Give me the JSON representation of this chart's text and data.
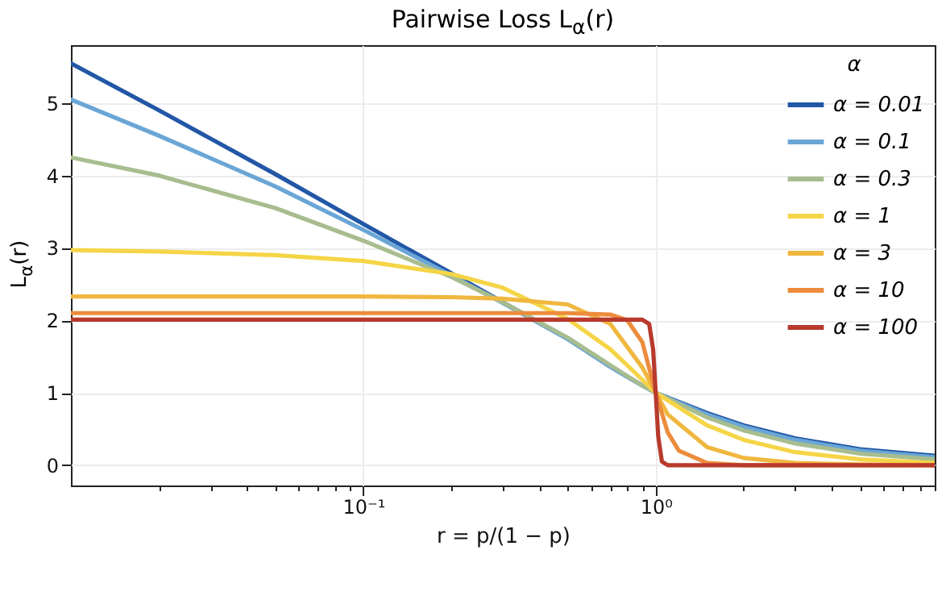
{
  "chart_data": {
    "type": "line",
    "title": "Pairwise Loss L$_{α}$(r)",
    "xlabel": "r = p/(1 − p)",
    "ylabel": "L$_{α}$(r)",
    "legend_title": "α",
    "log": "x",
    "grid": true,
    "legend": "top right",
    "line_style": "solid",
    "marker": "none",
    "xlim": [
      0.01,
      9
    ],
    "ylim": [
      -0.28,
      5.8
    ],
    "yticks": [
      0,
      1,
      2,
      3,
      4,
      5
    ],
    "xticks": [
      {
        "value": 0.02,
        "label": null
      },
      {
        "value": 0.03,
        "label": null
      },
      {
        "value": 0.04,
        "label": null
      },
      {
        "value": 0.05,
        "label": null
      },
      {
        "value": 0.06,
        "label": null
      },
      {
        "value": 0.07,
        "label": null
      },
      {
        "value": 0.08,
        "label": null
      },
      {
        "value": 0.09,
        "label": null
      },
      {
        "value": 0.1,
        "label": "10⁻¹"
      },
      {
        "value": 0.2,
        "label": null
      },
      {
        "value": 0.3,
        "label": null
      },
      {
        "value": 0.4,
        "label": null
      },
      {
        "value": 0.5,
        "label": null
      },
      {
        "value": 0.6,
        "label": null
      },
      {
        "value": 0.7,
        "label": null
      },
      {
        "value": 0.8,
        "label": null
      },
      {
        "value": 0.9,
        "label": null
      },
      {
        "value": 1,
        "label": "10⁰"
      },
      {
        "value": 2,
        "label": null
      },
      {
        "value": 3,
        "label": null
      },
      {
        "value": 4,
        "label": null
      },
      {
        "value": 5,
        "label": null
      },
      {
        "value": 6,
        "label": null
      },
      {
        "value": 7,
        "label": null
      },
      {
        "value": 8,
        "label": null
      },
      {
        "value": 9,
        "label": null
      }
    ],
    "series": [
      {
        "name": "α = 0.01",
        "color": "#2257a6",
        "x": [
          0.01,
          0.02,
          0.05,
          0.1,
          0.2,
          0.3,
          0.5,
          0.7,
          0.9,
          1,
          1.5,
          2,
          3,
          5,
          9
        ],
        "values": [
          5.55,
          4.9,
          4.02,
          3.33,
          2.65,
          2.25,
          1.75,
          1.36,
          1.1,
          1,
          0.72,
          0.55,
          0.37,
          0.22,
          0.13
        ]
      },
      {
        "name": "α = 0.1",
        "color": "#6aa6d6",
        "x": [
          0.01,
          0.02,
          0.05,
          0.1,
          0.2,
          0.3,
          0.5,
          0.7,
          0.9,
          1,
          1.5,
          2,
          3,
          5,
          9
        ],
        "values": [
          5.05,
          4.55,
          3.85,
          3.25,
          2.62,
          2.24,
          1.74,
          1.36,
          1.1,
          1,
          0.7,
          0.53,
          0.35,
          0.2,
          0.11
        ]
      },
      {
        "name": "α = 0.3",
        "color": "#a8bd8f",
        "x": [
          0.01,
          0.02,
          0.05,
          0.1,
          0.2,
          0.3,
          0.5,
          0.7,
          0.9,
          1,
          1.5,
          2,
          3,
          5,
          9
        ],
        "values": [
          4.25,
          4.0,
          3.55,
          3.1,
          2.6,
          2.25,
          1.76,
          1.38,
          1.1,
          1,
          0.66,
          0.48,
          0.3,
          0.16,
          0.08
        ]
      },
      {
        "name": "α = 1",
        "color": "#f5d547",
        "x": [
          0.01,
          0.02,
          0.05,
          0.1,
          0.2,
          0.3,
          0.5,
          0.7,
          0.9,
          1,
          1.5,
          2,
          3,
          5,
          9
        ],
        "values": [
          2.97,
          2.95,
          2.9,
          2.82,
          2.64,
          2.45,
          2.02,
          1.6,
          1.18,
          1,
          0.55,
          0.35,
          0.18,
          0.08,
          0.03
        ]
      },
      {
        "name": "α = 3",
        "color": "#f0b73f",
        "x": [
          0.01,
          0.1,
          0.2,
          0.3,
          0.5,
          0.7,
          0.9,
          1,
          1.1,
          1.5,
          2,
          3,
          5,
          9
        ],
        "values": [
          2.33,
          2.33,
          2.32,
          2.3,
          2.22,
          1.95,
          1.35,
          1,
          0.7,
          0.25,
          0.1,
          0.03,
          0.01,
          0
        ]
      },
      {
        "name": "α = 10",
        "color": "#ec8c3c",
        "x": [
          0.01,
          0.3,
          0.5,
          0.7,
          0.8,
          0.9,
          1,
          1.1,
          1.2,
          1.5,
          2,
          9
        ],
        "values": [
          2.1,
          2.1,
          2.1,
          2.08,
          2.0,
          1.7,
          1,
          0.45,
          0.2,
          0.03,
          0,
          0
        ]
      },
      {
        "name": "α = 100",
        "color": "#b83a2c",
        "x": [
          0.01,
          0.9,
          0.95,
          0.98,
          1,
          1.02,
          1.05,
          1.1,
          9
        ],
        "values": [
          2.01,
          2.01,
          1.95,
          1.6,
          1,
          0.4,
          0.05,
          0,
          0
        ]
      }
    ]
  }
}
